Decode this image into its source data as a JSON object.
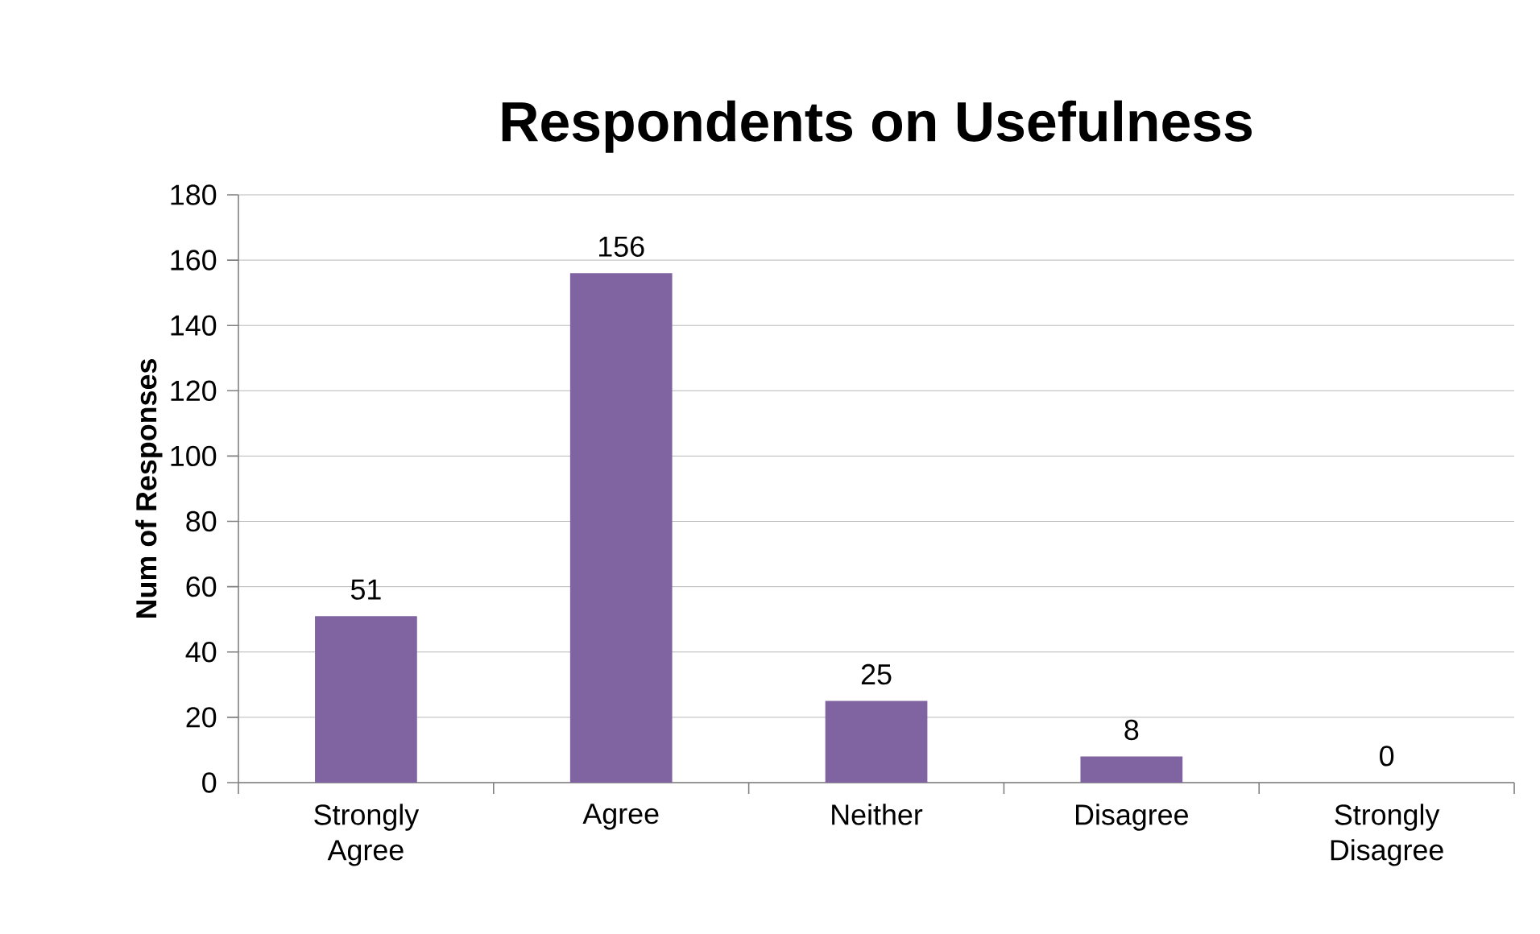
{
  "chart_data": {
    "type": "bar",
    "title": "Respondents on Usefulness",
    "ylabel": "Num of Responses",
    "categories": [
      "Strongly Agree",
      "Agree",
      "Neither",
      "Disagree",
      "Strongly Disagree"
    ],
    "values": [
      51,
      156,
      25,
      8,
      0
    ],
    "color": "#8064a2",
    "ylim": [
      0,
      180
    ],
    "yticks": [
      0,
      20,
      40,
      60,
      80,
      100,
      120,
      140,
      160,
      180
    ],
    "grid": "y",
    "data_labels": true
  }
}
